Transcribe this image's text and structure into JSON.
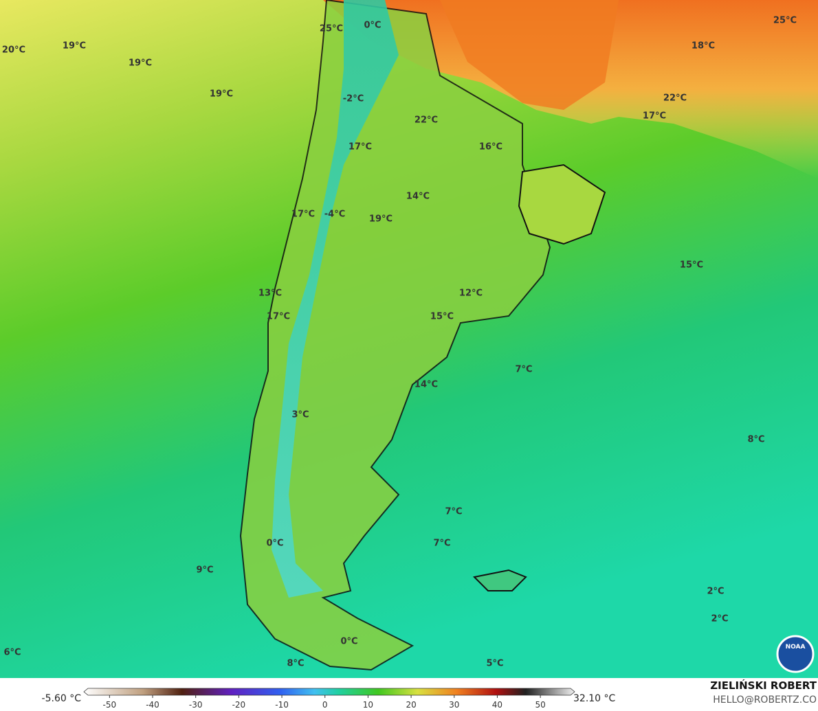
{
  "map": {
    "labels": [
      "20°C",
      "19°C",
      "19°C",
      "19°C",
      "25°C",
      "0°C",
      "-2°C",
      "22°C",
      "16°C",
      "17°C",
      "14°C",
      "19°C",
      "17°C",
      "-4°C",
      "25°C",
      "18°C",
      "22°C",
      "17°C",
      "15°C",
      "12°C",
      "13°C",
      "17°C",
      "15°C",
      "7°C",
      "14°C",
      "3°C",
      "8°C",
      "7°C",
      "7°C",
      "0°C",
      "9°C",
      "2°C",
      "2°C",
      "0°C",
      "6°C",
      "8°C",
      "5°C"
    ],
    "logo": "NOAA"
  },
  "colorbar": {
    "min_label": "-5.60 °C",
    "max_label": "32.10 °C",
    "range": [
      -55,
      57
    ],
    "ticks": [
      -50,
      -40,
      -30,
      -20,
      -10,
      0,
      10,
      20,
      30,
      40,
      50
    ]
  },
  "credit": {
    "name": "ZIELIŃSKI ROBERT",
    "contact": "HELLO@ROBERTZ.CO"
  }
}
